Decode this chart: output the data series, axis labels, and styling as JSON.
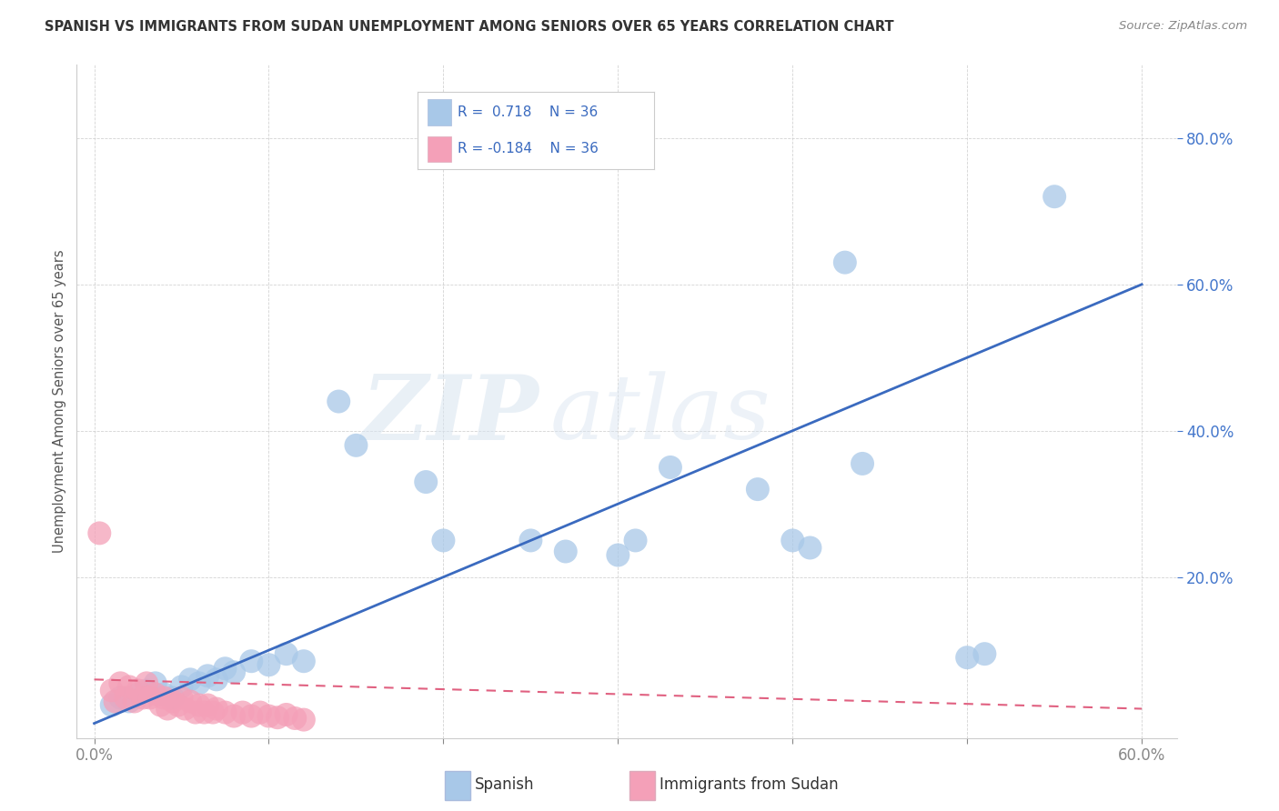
{
  "title": "SPANISH VS IMMIGRANTS FROM SUDAN UNEMPLOYMENT AMONG SENIORS OVER 65 YEARS CORRELATION CHART",
  "source": "Source: ZipAtlas.com",
  "ylabel": "Unemployment Among Seniors over 65 years",
  "x_tick_values": [
    0,
    10,
    20,
    30,
    40,
    50,
    60
  ],
  "x_tick_labels": [
    "0.0%",
    "",
    "",
    "",
    "",
    "",
    "60.0%"
  ],
  "y_tick_values": [
    20,
    40,
    60,
    80
  ],
  "y_tick_labels": [
    "20.0%",
    "40.0%",
    "60.0%",
    "80.0%"
  ],
  "xlim": [
    -1,
    62
  ],
  "ylim": [
    -2,
    90
  ],
  "R_spanish": 0.718,
  "R_sudan": -0.184,
  "N_spanish": 36,
  "N_sudan": 36,
  "legend_labels": [
    "Spanish",
    "Immigrants from Sudan"
  ],
  "spanish_color": "#a8c8e8",
  "sudan_color": "#f4a0b8",
  "spanish_line_color": "#3a6abf",
  "sudan_line_color": "#e06080",
  "watermark_zip": "ZIP",
  "watermark_atlas": "atlas",
  "background_color": "#ffffff",
  "spanish_points": [
    [
      1.0,
      2.5
    ],
    [
      1.5,
      3.5
    ],
    [
      2.0,
      3.0
    ],
    [
      2.5,
      4.0
    ],
    [
      3.0,
      4.5
    ],
    [
      3.5,
      5.5
    ],
    [
      4.0,
      4.0
    ],
    [
      4.5,
      3.5
    ],
    [
      5.0,
      5.0
    ],
    [
      5.5,
      6.0
    ],
    [
      6.0,
      5.5
    ],
    [
      6.5,
      6.5
    ],
    [
      7.0,
      6.0
    ],
    [
      7.5,
      7.5
    ],
    [
      8.0,
      7.0
    ],
    [
      9.0,
      8.5
    ],
    [
      10.0,
      8.0
    ],
    [
      11.0,
      9.5
    ],
    [
      12.0,
      8.5
    ],
    [
      14.0,
      44.0
    ],
    [
      15.0,
      38.0
    ],
    [
      19.0,
      33.0
    ],
    [
      20.0,
      25.0
    ],
    [
      25.0,
      25.0
    ],
    [
      27.0,
      23.5
    ],
    [
      30.0,
      23.0
    ],
    [
      31.0,
      25.0
    ],
    [
      33.0,
      35.0
    ],
    [
      38.0,
      32.0
    ],
    [
      40.0,
      25.0
    ],
    [
      41.0,
      24.0
    ],
    [
      43.0,
      63.0
    ],
    [
      44.0,
      35.5
    ],
    [
      50.0,
      9.0
    ],
    [
      51.0,
      9.5
    ],
    [
      55.0,
      72.0
    ]
  ],
  "sudan_points": [
    [
      0.3,
      26.0
    ],
    [
      1.0,
      4.5
    ],
    [
      1.2,
      3.0
    ],
    [
      1.5,
      5.5
    ],
    [
      1.8,
      3.5
    ],
    [
      2.0,
      5.0
    ],
    [
      2.3,
      3.0
    ],
    [
      2.5,
      4.5
    ],
    [
      2.8,
      3.5
    ],
    [
      3.0,
      5.5
    ],
    [
      3.2,
      3.5
    ],
    [
      3.5,
      4.0
    ],
    [
      3.8,
      2.5
    ],
    [
      4.0,
      3.5
    ],
    [
      4.2,
      2.0
    ],
    [
      4.5,
      3.0
    ],
    [
      4.8,
      2.5
    ],
    [
      5.0,
      3.5
    ],
    [
      5.2,
      2.0
    ],
    [
      5.5,
      3.0
    ],
    [
      5.8,
      1.5
    ],
    [
      6.0,
      2.5
    ],
    [
      6.3,
      1.5
    ],
    [
      6.5,
      2.5
    ],
    [
      6.8,
      1.5
    ],
    [
      7.0,
      2.0
    ],
    [
      7.5,
      1.5
    ],
    [
      8.0,
      1.0
    ],
    [
      8.5,
      1.5
    ],
    [
      9.0,
      1.0
    ],
    [
      9.5,
      1.5
    ],
    [
      10.0,
      1.0
    ],
    [
      10.5,
      0.8
    ],
    [
      11.0,
      1.2
    ],
    [
      11.5,
      0.7
    ],
    [
      12.0,
      0.5
    ]
  ],
  "sp_line_x0": 0,
  "sp_line_y0": 0,
  "sp_line_x1": 60,
  "sp_line_y1": 60,
  "su_line_x0": 0,
  "su_line_y0": 6.0,
  "su_line_x1": 60,
  "su_line_y1": 2.0
}
